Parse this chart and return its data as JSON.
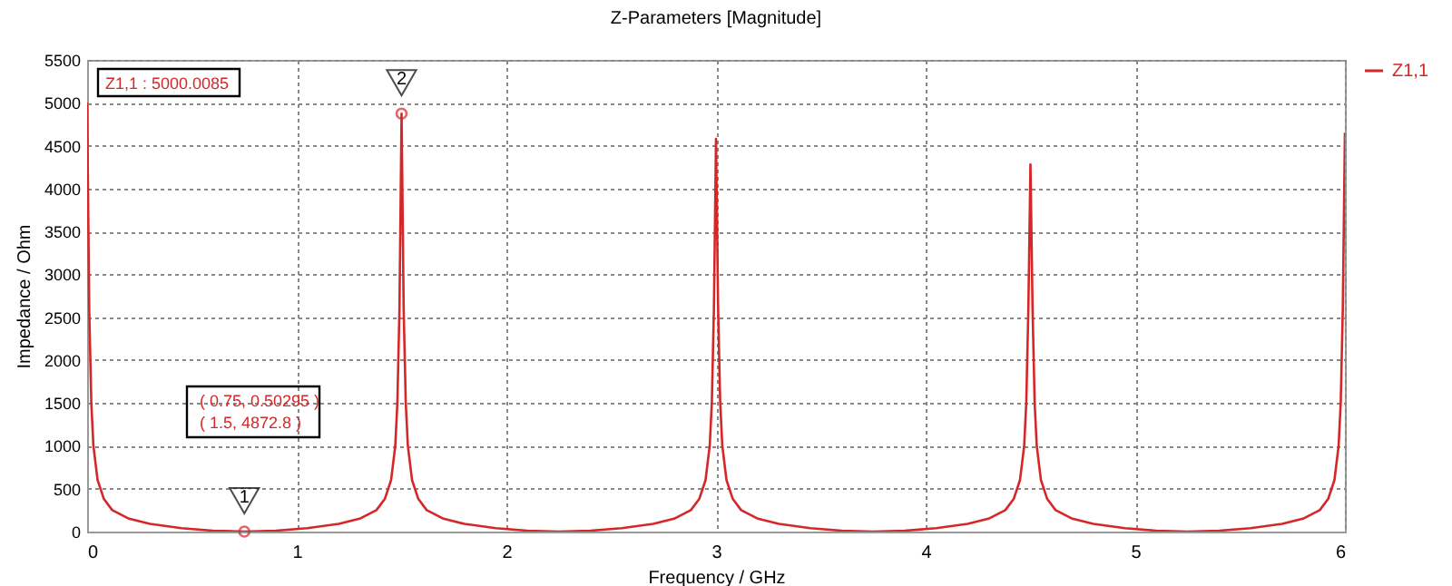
{
  "chart_data": {
    "type": "line",
    "title": "Z-Parameters [Magnitude]",
    "xlabel": "Frequency / GHz",
    "ylabel": "Impedance / Ohm",
    "xlim": [
      0,
      6
    ],
    "xticks": [
      0,
      1,
      2,
      3,
      4,
      5,
      6
    ],
    "ylim": [
      0,
      5500
    ],
    "yticks": [
      0,
      500,
      1000,
      1500,
      2000,
      2500,
      3000,
      3500,
      4000,
      4500,
      5000,
      5500
    ],
    "grid": true,
    "legend": "top right",
    "annotations": [
      "Z1,1 : 5000.0085",
      "( 0.75, 0.50295 )",
      "( 1.5, 4872.8 )",
      {
        "text": "1",
        "x": 0.75,
        "y": 0.50295
      },
      {
        "text": "2",
        "x": 1.5,
        "y": 4872.8
      }
    ],
    "series": [
      {
        "name": "Z1,1",
        "color": "#d62728",
        "x": [
          0,
          0.01,
          0.02,
          0.03,
          0.05,
          0.08,
          0.12,
          0.2,
          0.3,
          0.45,
          0.6,
          0.75,
          0.9,
          1.05,
          1.2,
          1.3,
          1.38,
          1.42,
          1.45,
          1.47,
          1.48,
          1.49,
          1.5,
          1.51,
          1.52,
          1.53,
          1.55,
          1.58,
          1.62,
          1.7,
          1.8,
          1.95,
          2.1,
          2.25,
          2.4,
          2.55,
          2.7,
          2.8,
          2.88,
          2.92,
          2.95,
          2.97,
          2.98,
          2.99,
          3.0,
          3.01,
          3.02,
          3.03,
          3.05,
          3.08,
          3.12,
          3.2,
          3.3,
          3.45,
          3.6,
          3.75,
          3.9,
          4.05,
          4.2,
          4.3,
          4.38,
          4.42,
          4.45,
          4.47,
          4.48,
          4.49,
          4.5,
          4.51,
          4.52,
          4.53,
          4.55,
          4.58,
          4.62,
          4.7,
          4.8,
          4.95,
          5.1,
          5.25,
          5.4,
          5.55,
          5.7,
          5.8,
          5.88,
          5.92,
          5.95,
          5.97,
          5.98,
          5.99,
          6.0
        ],
        "values": [
          5000,
          2600,
          1500,
          1000,
          600,
          380,
          250,
          150,
          90,
          40,
          10,
          0,
          10,
          40,
          90,
          150,
          250,
          380,
          600,
          1000,
          1500,
          2600,
          4873,
          2600,
          1500,
          1000,
          600,
          380,
          250,
          150,
          90,
          40,
          10,
          0,
          10,
          40,
          90,
          150,
          250,
          380,
          600,
          1000,
          1500,
          2600,
          4580,
          2600,
          1500,
          1000,
          600,
          380,
          250,
          150,
          90,
          40,
          10,
          0,
          10,
          40,
          90,
          150,
          250,
          380,
          600,
          1000,
          1500,
          2600,
          4280,
          2600,
          1500,
          1000,
          600,
          380,
          250,
          150,
          90,
          40,
          10,
          0,
          10,
          40,
          90,
          150,
          250,
          380,
          600,
          1000,
          1500,
          2600,
          4650
        ]
      }
    ]
  }
}
